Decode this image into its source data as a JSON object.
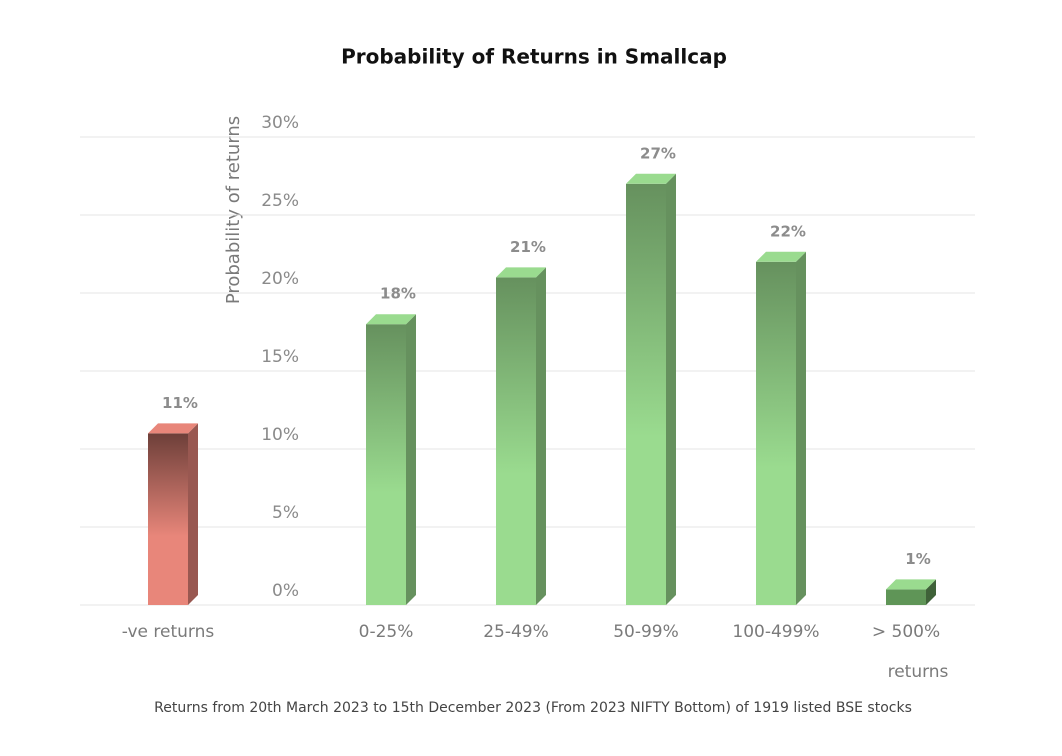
{
  "chart_data": {
    "type": "bar3d",
    "title": "Probability of Returns in Smallcap",
    "ylabel": "Probability of returns",
    "x_label": "returns",
    "note": "Returns from 20th March 2023 to 15th December 2023 (From 2023 NIFTY Bottom) of 1919 listed BSE stocks",
    "categories": [
      "-ve returns",
      "0-25%",
      "25-49%",
      "50-99%",
      "100-499%",
      "> 500%"
    ],
    "values": [
      11,
      18,
      21,
      27,
      22,
      1
    ],
    "value_labels": [
      "11%",
      "18%",
      "21%",
      "27%",
      "22%",
      "1%"
    ],
    "colors": [
      "#e8867a",
      "#9adb8f",
      "#9adb8f",
      "#9adb8f",
      "#9adb8f",
      "#5f9557"
    ],
    "ylim": [
      0,
      30
    ],
    "yticks": [
      {
        "value": 0,
        "label": "0%"
      },
      {
        "value": 5,
        "label": "5%"
      },
      {
        "value": 10,
        "label": "10%"
      },
      {
        "value": 15,
        "label": "15%"
      },
      {
        "value": 20,
        "label": "20%"
      },
      {
        "value": 25,
        "label": "25%"
      },
      {
        "value": 30,
        "label": "30%"
      }
    ],
    "grid": true
  }
}
